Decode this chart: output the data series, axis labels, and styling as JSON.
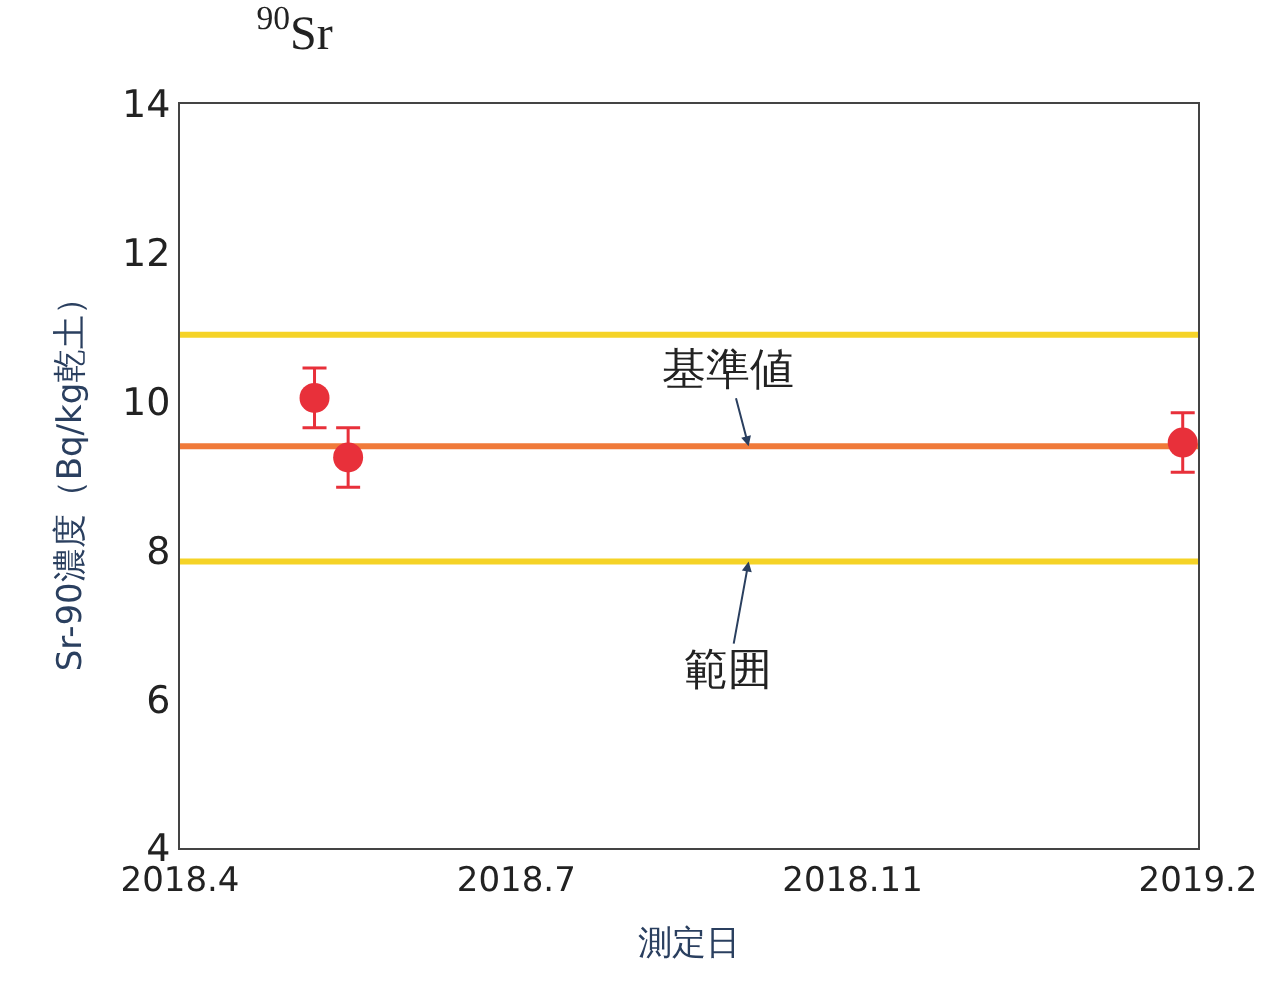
{
  "chart_data": {
    "type": "scatter",
    "title": "$^{90}$Sr",
    "xlabel": "測定日",
    "ylabel": "Sr-90濃度（Bq/kg乾土）",
    "x": [
      "2018-05-15",
      "2018-05-26",
      "2019-02-23"
    ],
    "series": [
      {
        "color": "#e8303a",
        "values": [
          10.05,
          9.25,
          9.45
        ],
        "errors": [
          0.4,
          0.4,
          0.4
        ]
      }
    ],
    "xlim": [
      "2018-04-01",
      "2019-02-28"
    ],
    "xticks": [
      {
        "value": "2018-04-01",
        "label": "2018.4"
      },
      {
        "value": "2018-07-20",
        "label": "2018.7"
      },
      {
        "value": "2018-11-07",
        "label": "2018.11"
      },
      {
        "value": "2019-02-28",
        "label": "2019.2"
      }
    ],
    "ylim": [
      4,
      14
    ],
    "yticks": [
      4,
      6,
      8,
      10,
      12,
      14
    ],
    "ref_lines": [
      {
        "axis": "y",
        "value": 10.9,
        "color": "#f5d327"
      },
      {
        "axis": "y",
        "value": 9.4,
        "color": "#f07a3a"
      },
      {
        "axis": "y",
        "value": 7.85,
        "color": "#f5d327"
      }
    ],
    "annotations": [
      {
        "text": "基準値",
        "x": "2018-10-04",
        "y": 9.4
      },
      {
        "text": "範囲",
        "x": "2018-10-04",
        "y": 7.85
      }
    ],
    "marker": "circle",
    "grid": false,
    "legend": false
  }
}
